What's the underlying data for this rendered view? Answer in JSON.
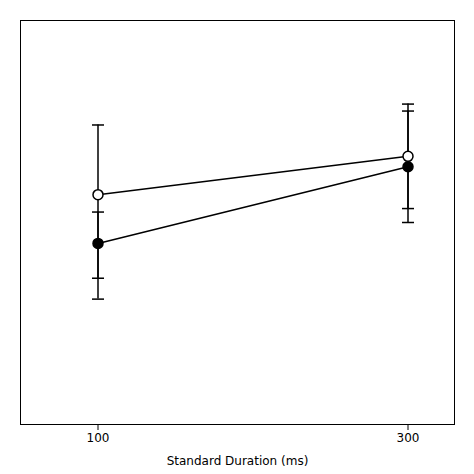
{
  "chart_data": {
    "type": "line",
    "xlabel": "Standard Duration (ms)",
    "x": [
      100,
      300
    ],
    "series": [
      {
        "color": "#000000",
        "marker": "circle",
        "values": [
          460,
          570
        ],
        "yerr_lower": [
          80,
          80
        ],
        "yerr_upper": [
          45,
          80
        ]
      },
      {
        "color": "#000000",
        "marker": "circle_open",
        "values": [
          530,
          585
        ],
        "yerr_lower": [
          120,
          75
        ],
        "yerr_upper": [
          100,
          75
        ]
      }
    ],
    "xlim": [
      50,
      330
    ],
    "xticks": [
      100,
      300
    ],
    "ylim": [
      200,
      780
    ],
    "tick_labels": "x",
    "grid": false
  }
}
